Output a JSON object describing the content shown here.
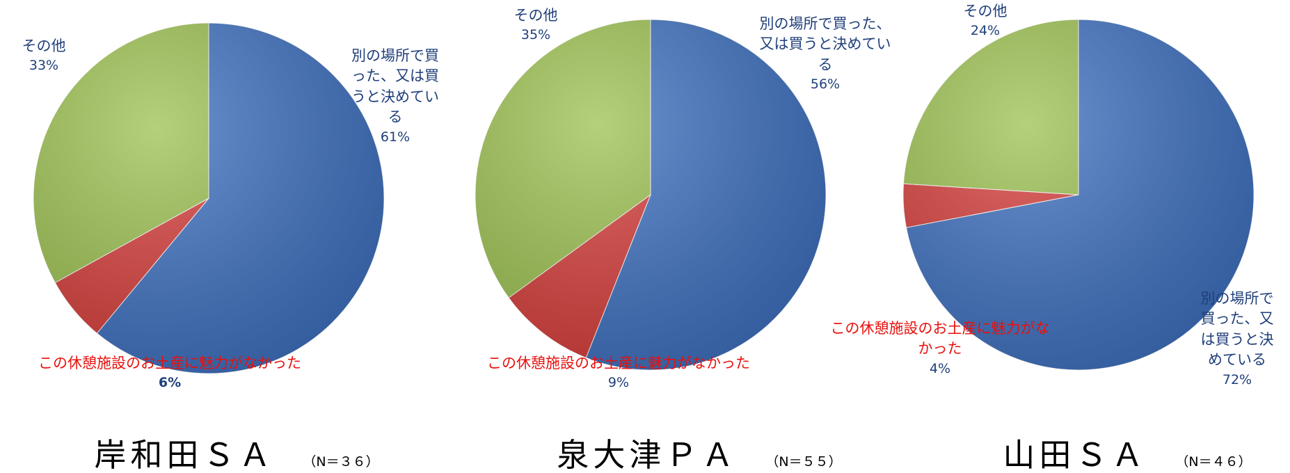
{
  "chart_data": [
    {
      "type": "pie",
      "title": "岸和田ＳＡ",
      "subtitle": "（N＝３６）",
      "categories": [
        "別の場所で買った、又は買うと決めている",
        "この休憩施設のお土産に魅力がなかった",
        "その他"
      ],
      "values": [
        61,
        6,
        33
      ],
      "value_labels": [
        "61%",
        "6%",
        "33%"
      ],
      "colors": [
        "#3d70c0",
        "#d63d3a",
        "#9cc150"
      ]
    },
    {
      "type": "pie",
      "title": "泉大津ＰＡ",
      "subtitle": "（N＝５５）",
      "categories": [
        "別の場所で買った、又は買うと決めている",
        "この休憩施設のお土産に魅力がなかった",
        "その他"
      ],
      "values": [
        56,
        9,
        35
      ],
      "value_labels": [
        "56%",
        "9%",
        "35%"
      ],
      "colors": [
        "#3d70c0",
        "#d63d3a",
        "#9cc150"
      ]
    },
    {
      "type": "pie",
      "title": "山田ＳＡ",
      "subtitle": "（N＝４６）",
      "categories": [
        "別の場所で買った、又は買うと決めている",
        "この休憩施設のお土産に魅力がなかった",
        "その他"
      ],
      "values": [
        72,
        4,
        24
      ],
      "value_labels": [
        "72%",
        "4%",
        "24%"
      ],
      "colors": [
        "#3d70c0",
        "#d63d3a",
        "#9cc150"
      ]
    }
  ]
}
